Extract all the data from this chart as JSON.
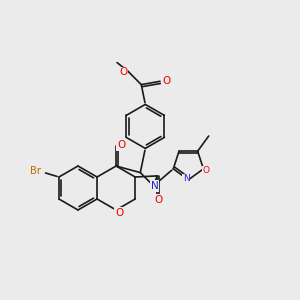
{
  "background_color": "#ebebeb",
  "bond_color": "#1a1a1a",
  "atom_colors": {
    "O": "#ee0000",
    "N": "#2222cc",
    "Br": "#cc6600",
    "C": "#1a1a1a"
  },
  "bond_lw": 1.2,
  "font_size": 7.5,
  "figsize": [
    3.0,
    3.0
  ],
  "dpi": 100
}
